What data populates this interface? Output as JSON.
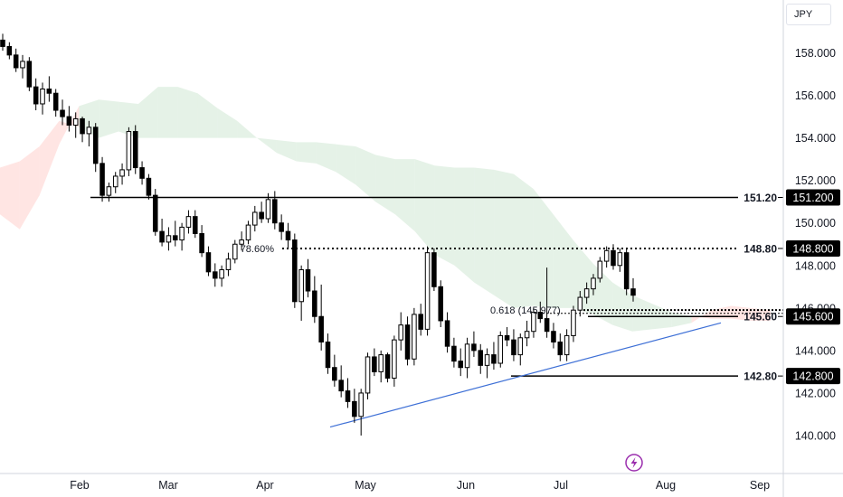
{
  "header": {
    "currency": "JPY"
  },
  "chart_data": {
    "type": "candlestick",
    "y_ticks": [
      "158.000",
      "156.000",
      "154.000",
      "152.000",
      "150.000",
      "148.000",
      "146.000",
      "144.000",
      "142.000",
      "140.000"
    ],
    "y_tick_values": [
      158,
      156,
      154,
      152,
      150,
      148,
      146,
      144,
      142,
      140
    ],
    "x_ticks": [
      "Feb",
      "Mar",
      "Apr",
      "May",
      "Jun",
      "Jul",
      "Aug",
      "Sep"
    ],
    "ylim": [
      138.5,
      160
    ],
    "colors": {
      "candle": "#000000",
      "cloud_bull": "#cfe8d4",
      "cloud_bear": "#ffd0cc",
      "trendline": "#3d6fd6",
      "lightning": "#9b2fae"
    },
    "levels": [
      {
        "value": 151.2,
        "label": "151.20",
        "badge": "151.200",
        "style": "solid"
      },
      {
        "value": 148.8,
        "label": "148.80",
        "badge": "148.800",
        "style": "dotted"
      },
      {
        "value": 145.6,
        "label": "145.60",
        "badge": "145.600",
        "style": "solid"
      },
      {
        "value": 142.8,
        "label": "142.80",
        "badge": "142.800",
        "style": "solid"
      }
    ],
    "fib_labels": [
      {
        "text": "78.60%"
      },
      {
        "text": "0.618 (145.977)"
      }
    ],
    "events": [
      {
        "icon": "lightning-icon"
      }
    ],
    "candles_ohlc": [
      [
        158.6,
        158.9,
        158.1,
        158.3
      ],
      [
        158.3,
        158.5,
        157.7,
        157.9
      ],
      [
        157.9,
        158.2,
        157.1,
        157.3
      ],
      [
        157.3,
        157.9,
        156.8,
        157.6
      ],
      [
        157.6,
        157.8,
        156.2,
        156.4
      ],
      [
        156.4,
        156.8,
        155.3,
        155.6
      ],
      [
        155.6,
        156.6,
        155.1,
        156.3
      ],
      [
        156.3,
        156.9,
        155.7,
        156.1
      ],
      [
        156.1,
        156.3,
        155.0,
        155.3
      ],
      [
        155.3,
        155.8,
        154.6,
        155.0
      ],
      [
        155.0,
        155.5,
        154.3,
        154.6
      ],
      [
        154.6,
        155.2,
        154.0,
        154.9
      ],
      [
        154.9,
        155.0,
        153.8,
        154.2
      ],
      [
        154.2,
        154.8,
        153.6,
        154.5
      ],
      [
        154.5,
        154.7,
        152.4,
        152.8
      ],
      [
        152.8,
        153.1,
        151.0,
        151.3
      ],
      [
        151.3,
        151.9,
        151.0,
        151.7
      ],
      [
        151.7,
        152.4,
        151.4,
        152.2
      ],
      [
        152.2,
        152.8,
        151.8,
        152.5
      ],
      [
        152.5,
        154.5,
        152.2,
        154.3
      ],
      [
        154.3,
        154.6,
        152.3,
        152.6
      ],
      [
        152.6,
        152.9,
        151.8,
        152.1
      ],
      [
        152.1,
        152.3,
        151.1,
        151.3
      ],
      [
        151.3,
        151.6,
        149.4,
        149.6
      ],
      [
        149.6,
        150.2,
        148.9,
        149.1
      ],
      [
        149.1,
        149.8,
        148.7,
        149.4
      ],
      [
        149.4,
        150.1,
        148.9,
        149.2
      ],
      [
        149.2,
        150.0,
        148.7,
        149.8
      ],
      [
        149.8,
        150.6,
        149.5,
        150.3
      ],
      [
        150.3,
        150.6,
        149.3,
        149.5
      ],
      [
        149.5,
        149.9,
        148.4,
        148.6
      ],
      [
        148.6,
        148.9,
        147.5,
        147.7
      ],
      [
        147.7,
        148.1,
        147.0,
        147.4
      ],
      [
        147.4,
        148.0,
        147.0,
        147.8
      ],
      [
        147.8,
        148.6,
        147.5,
        148.3
      ],
      [
        148.3,
        149.2,
        148.1,
        149.0
      ],
      [
        149.0,
        149.6,
        148.7,
        149.2
      ],
      [
        149.2,
        150.1,
        149.0,
        149.9
      ],
      [
        149.9,
        150.8,
        149.6,
        150.5
      ],
      [
        150.5,
        151.0,
        150.0,
        150.2
      ],
      [
        150.2,
        151.4,
        150.0,
        151.1
      ],
      [
        151.1,
        151.5,
        149.7,
        150.0
      ],
      [
        150.0,
        150.4,
        149.2,
        149.6
      ],
      [
        149.6,
        150.0,
        148.8,
        149.2
      ],
      [
        149.2,
        149.5,
        146.0,
        146.3
      ],
      [
        146.3,
        148.0,
        145.4,
        147.8
      ],
      [
        147.8,
        148.3,
        146.5,
        146.8
      ],
      [
        146.8,
        147.5,
        145.3,
        145.6
      ],
      [
        145.6,
        147.1,
        144.0,
        144.4
      ],
      [
        144.4,
        144.8,
        142.9,
        143.2
      ],
      [
        143.2,
        143.8,
        142.3,
        142.6
      ],
      [
        142.6,
        143.3,
        141.8,
        142.1
      ],
      [
        142.1,
        142.7,
        141.3,
        141.6
      ],
      [
        141.6,
        142.2,
        140.6,
        140.9
      ],
      [
        140.9,
        142.2,
        140.0,
        142.0
      ],
      [
        142.0,
        143.9,
        141.7,
        143.7
      ],
      [
        143.7,
        144.1,
        142.8,
        143.0
      ],
      [
        143.0,
        144.0,
        142.5,
        143.8
      ],
      [
        143.8,
        143.9,
        142.5,
        142.7
      ],
      [
        142.7,
        144.7,
        142.3,
        144.5
      ],
      [
        144.5,
        145.8,
        144.0,
        145.2
      ],
      [
        145.2,
        145.6,
        143.3,
        143.6
      ],
      [
        143.6,
        146.0,
        143.3,
        145.7
      ],
      [
        145.7,
        146.2,
        144.7,
        145.0
      ],
      [
        145.0,
        148.9,
        144.7,
        148.6
      ],
      [
        148.6,
        148.8,
        146.8,
        147.0
      ],
      [
        147.0,
        147.3,
        145.1,
        145.4
      ],
      [
        145.4,
        145.8,
        143.9,
        144.2
      ],
      [
        144.2,
        144.6,
        143.2,
        143.5
      ],
      [
        143.5,
        144.1,
        142.8,
        143.2
      ],
      [
        143.2,
        144.6,
        142.7,
        144.3
      ],
      [
        144.3,
        144.9,
        143.7,
        144.0
      ],
      [
        144.0,
        144.3,
        142.9,
        143.3
      ],
      [
        143.3,
        144.1,
        142.7,
        143.8
      ],
      [
        143.8,
        144.4,
        143.1,
        143.4
      ],
      [
        143.4,
        144.9,
        143.2,
        144.7
      ],
      [
        144.7,
        145.1,
        144.2,
        144.5
      ],
      [
        144.5,
        145.0,
        143.5,
        143.8
      ],
      [
        143.8,
        144.8,
        143.3,
        144.6
      ],
      [
        144.6,
        145.4,
        144.2,
        144.9
      ],
      [
        144.9,
        146.0,
        144.6,
        145.8
      ],
      [
        145.8,
        146.3,
        145.3,
        145.5
      ],
      [
        145.5,
        147.9,
        144.6,
        144.9
      ],
      [
        144.9,
        145.3,
        144.1,
        144.4
      ],
      [
        144.4,
        144.8,
        143.5,
        143.8
      ],
      [
        143.8,
        145.0,
        143.5,
        144.7
      ],
      [
        144.7,
        146.1,
        144.4,
        145.9
      ],
      [
        145.9,
        146.8,
        145.6,
        146.5
      ],
      [
        146.5,
        147.2,
        146.2,
        146.9
      ],
      [
        146.9,
        147.6,
        146.6,
        147.4
      ],
      [
        147.4,
        148.4,
        147.2,
        148.2
      ],
      [
        148.2,
        148.9,
        147.9,
        148.7
      ],
      [
        148.7,
        149.0,
        147.8,
        148.0
      ],
      [
        148.0,
        148.8,
        147.7,
        148.6
      ],
      [
        148.6,
        148.8,
        146.6,
        146.9
      ],
      [
        146.9,
        147.4,
        146.3,
        146.6
      ]
    ],
    "cloud_points": [
      [
        150.4,
        152.6,
        151.0
      ],
      [
        149.7,
        152.9,
        151.0
      ],
      [
        151.3,
        153.6,
        151.0
      ],
      [
        153.7,
        154.8,
        151.0
      ],
      [
        155.5,
        154.5,
        151.0
      ],
      [
        155.8,
        154.0,
        151.0
      ],
      [
        155.7,
        154.3,
        151.0
      ],
      [
        155.6,
        154.0,
        151.0
      ],
      [
        156.4,
        154.0,
        151.0
      ],
      [
        156.4,
        154.0,
        151.0
      ],
      [
        156.1,
        154.0,
        151.0
      ],
      [
        155.4,
        154.0,
        151.0
      ],
      [
        154.8,
        154.0,
        151.0
      ],
      [
        154.0,
        154.0,
        151.0
      ],
      [
        153.9,
        153.3,
        151.0
      ],
      [
        153.8,
        152.9,
        151.0
      ],
      [
        153.8,
        152.8,
        151.0
      ],
      [
        153.7,
        152.4,
        151.0
      ],
      [
        153.6,
        151.8,
        151.0
      ],
      [
        153.2,
        151.0,
        151.0
      ],
      [
        153.0,
        150.4,
        151.0
      ],
      [
        153.0,
        149.6,
        151.0
      ],
      [
        152.7,
        148.5,
        151.0
      ],
      [
        152.6,
        148.0,
        151.0
      ],
      [
        152.6,
        147.2,
        151.0
      ],
      [
        152.5,
        146.6,
        151.0
      ],
      [
        152.3,
        146.0,
        151.0
      ],
      [
        151.6,
        146.1,
        151.0
      ],
      [
        150.4,
        146.0,
        151.0
      ],
      [
        149.2,
        146.0,
        151.0
      ],
      [
        148.1,
        145.7,
        151.0
      ],
      [
        147.2,
        145.2,
        151.0
      ],
      [
        146.6,
        144.9,
        151.0
      ],
      [
        146.2,
        145.0,
        151.0
      ],
      [
        145.8,
        145.1,
        151.0
      ],
      [
        145.6,
        145.3,
        151.0
      ],
      [
        145.5,
        145.9,
        151.0
      ],
      [
        145.5,
        146.1,
        151.0
      ],
      [
        145.4,
        146.0,
        151.0
      ],
      [
        145.4,
        145.9,
        151.0
      ]
    ]
  }
}
